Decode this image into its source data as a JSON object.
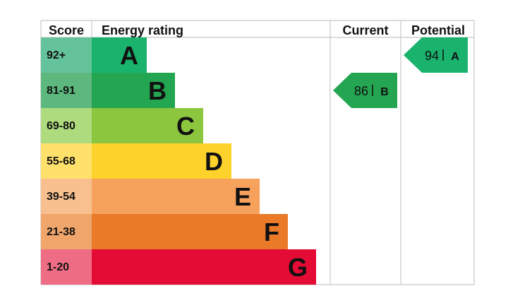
{
  "chart_data": {
    "type": "bar",
    "headers": {
      "score": "Score",
      "energy_rating": "Energy rating",
      "current": "Current",
      "potential": "Potential"
    },
    "bands": [
      {
        "score": "92+",
        "letter": "A",
        "color": "#19b36e",
        "score_bg": "#64c39a"
      },
      {
        "score": "81-91",
        "letter": "B",
        "color": "#24a551",
        "score_bg": "#5cb87d"
      },
      {
        "score": "69-80",
        "letter": "C",
        "color": "#8cc63f",
        "score_bg": "#aedb7d"
      },
      {
        "score": "55-68",
        "letter": "D",
        "color": "#fdd22b",
        "score_bg": "#fee06b"
      },
      {
        "score": "39-54",
        "letter": "E",
        "color": "#f7a25c",
        "score_bg": "#f9c08f"
      },
      {
        "score": "21-38",
        "letter": "F",
        "color": "#ea7928",
        "score_bg": "#f0a56b"
      },
      {
        "score": "1-20",
        "letter": "G",
        "color": "#e40b35",
        "score_bg": "#ee6d85"
      }
    ],
    "current": {
      "value": "86",
      "letter": "B",
      "band_index": 1,
      "color": "#24a551"
    },
    "potential": {
      "value": "94",
      "letter": "A",
      "band_index": 0,
      "color": "#19b36e"
    }
  }
}
